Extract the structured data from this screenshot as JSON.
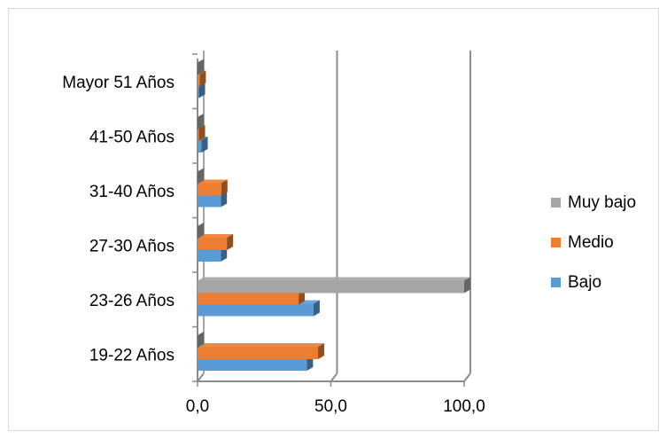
{
  "chart_data": {
    "type": "bar",
    "orientation": "horizontal",
    "three_d": true,
    "categories": [
      "19-22 Años",
      "23-26 Años",
      "27-30 Años",
      "31-40 Años",
      "41-50 Años",
      "Mayor 51 Años"
    ],
    "series": [
      {
        "name": "Bajo",
        "color": "#5b9bd5",
        "values": [
          41.0,
          43.5,
          8.7,
          8.7,
          1.5,
          0.5
        ]
      },
      {
        "name": "Medio",
        "color": "#ed7d31",
        "values": [
          45.2,
          37.9,
          11.0,
          8.9,
          0.5,
          0.8
        ]
      },
      {
        "name": "Muy bajo",
        "color": "#a5a5a5",
        "values": [
          0.0,
          100.0,
          0.0,
          0.0,
          0.0,
          0.0
        ]
      }
    ],
    "x_ticks": [
      "0,0",
      "50,0",
      "100,0"
    ],
    "xlim": [
      0,
      100
    ],
    "gridlines": true,
    "legend_position": "right",
    "title": "",
    "xlabel": "",
    "ylabel": ""
  }
}
